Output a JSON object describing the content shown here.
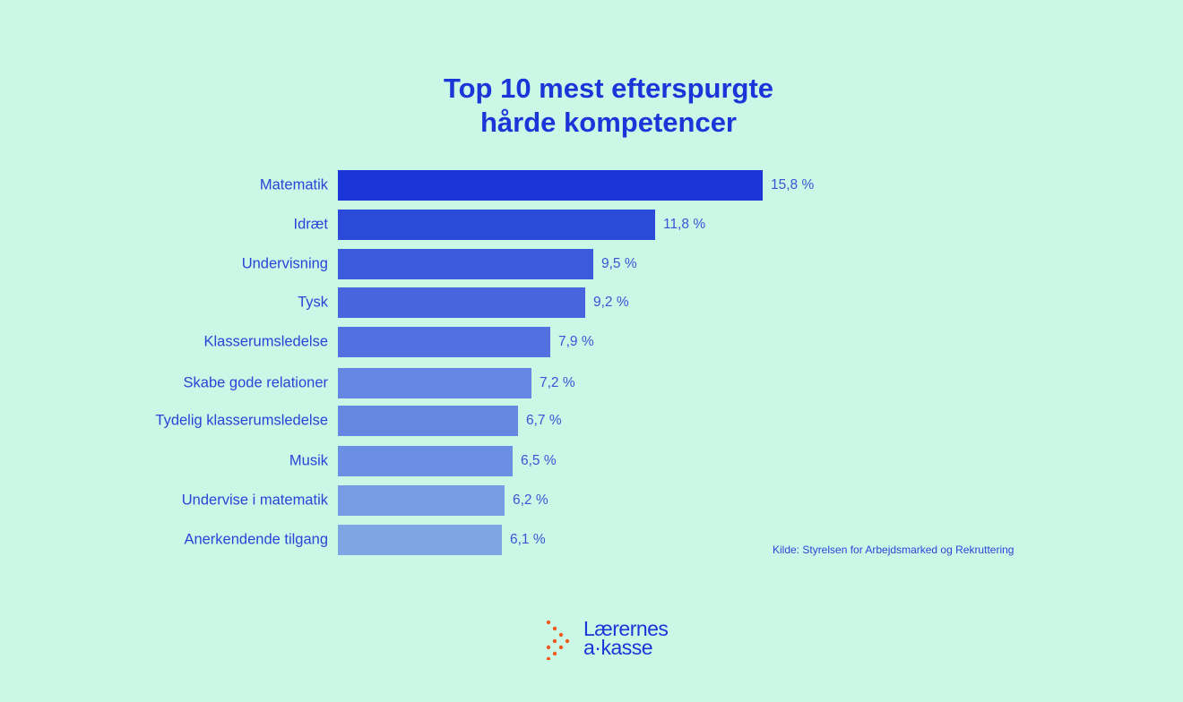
{
  "chart_data": {
    "type": "bar",
    "orientation": "horizontal",
    "title_lines": [
      "Top 10 mest efterspurgte",
      "hårde kompetencer"
    ],
    "categories": [
      "Matematik",
      "Idræt",
      "Undervisning",
      "Tysk",
      "Klasserumsledelse",
      "Skabe gode relationer",
      "Tydelig klasserumsledelse",
      "Musik",
      "Undervise i matematik",
      "Anerkendende tilgang"
    ],
    "values": [
      15.8,
      11.8,
      9.5,
      9.2,
      7.9,
      7.2,
      6.7,
      6.5,
      6.2,
      6.1
    ],
    "value_labels": [
      "15,8 %",
      "11,8 %",
      "9,5 %",
      "9,2 %",
      "7,9 %",
      "7,2 %",
      "6,7 %",
      "6,5 %",
      "6,2 %",
      "6,1 %"
    ],
    "unit": "%",
    "colors": [
      "#1b35d9",
      "#2c4ad9",
      "#3c5bdc",
      "#4766de",
      "#5270df",
      "#6586e2",
      "#6788e2",
      "#6b8fe2",
      "#779ce4",
      "#7ea5e4"
    ],
    "xlabel": "",
    "ylabel": "",
    "grid": false,
    "legend": "none"
  },
  "source": "Kilde: Styrelsen for Arbejdsmarked og Rekruttering",
  "logo": {
    "line1": "Lærernes",
    "line2": "a·kasse",
    "dot_color": "#f25a1d"
  }
}
